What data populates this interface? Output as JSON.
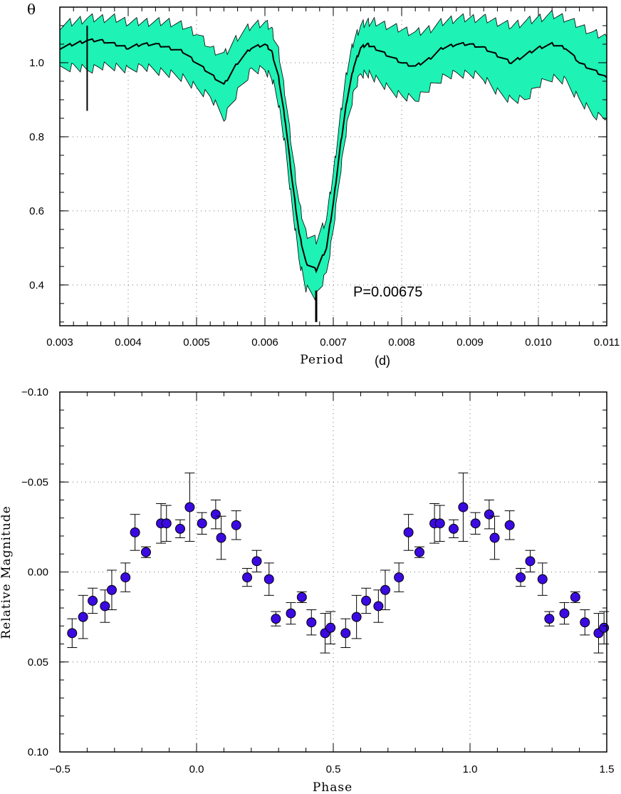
{
  "chart_data": [
    {
      "type": "line",
      "panel": "top",
      "xlabel": "Period",
      "xunit": "(d)",
      "ylabel": "θ",
      "xlim": [
        0.003,
        0.011
      ],
      "ylim": [
        0.29,
        1.15
      ],
      "x_ticks": [
        "0.003",
        "0.004",
        "0.005",
        "0.006",
        "0.007",
        "0.008",
        "0.009",
        "0.010",
        "0.011"
      ],
      "y_ticks": [
        "0.4",
        "0.6",
        "0.8",
        "1.0"
      ],
      "grid": true,
      "band_color": "#1ef2b4",
      "annotation": "P=0.00675",
      "marked_period": 0.00675,
      "series": [
        {
          "x": [
            0.003,
            0.0032,
            0.0034,
            0.0036,
            0.0038,
            0.004,
            0.0042,
            0.0044,
            0.0046,
            0.0048,
            0.005,
            0.0052,
            0.0054,
            0.0056,
            0.0058,
            0.006,
            0.0061,
            0.0062,
            0.0063,
            0.0064,
            0.0065,
            0.0066,
            0.00675,
            0.0069,
            0.007,
            0.0071,
            0.0072,
            0.0073,
            0.0074,
            0.0075,
            0.0076,
            0.0078,
            0.008,
            0.0082,
            0.0084,
            0.0086,
            0.0088,
            0.009,
            0.0092,
            0.0094,
            0.0096,
            0.0098,
            0.01,
            0.0102,
            0.0104,
            0.0106,
            0.0108,
            0.011
          ],
          "y": [
            1.04,
            1.05,
            1.06,
            1.06,
            1.05,
            1.04,
            1.05,
            1.05,
            1.04,
            1.03,
            1.0,
            0.97,
            0.94,
            1.0,
            1.04,
            1.05,
            1.03,
            0.96,
            0.84,
            0.68,
            0.54,
            0.46,
            0.44,
            0.5,
            0.62,
            0.77,
            0.9,
            0.99,
            1.04,
            1.05,
            1.04,
            1.02,
            1.0,
            0.99,
            1.01,
            1.04,
            1.05,
            1.05,
            1.04,
            1.02,
            1.0,
            1.02,
            1.04,
            1.05,
            1.04,
            1.0,
            0.98,
            0.96
          ],
          "lower": [
            0.98,
            0.99,
            0.98,
            0.99,
            0.99,
            0.98,
            0.99,
            0.98,
            0.97,
            0.96,
            0.93,
            0.91,
            0.85,
            0.92,
            0.98,
            0.98,
            0.96,
            0.89,
            0.77,
            0.61,
            0.47,
            0.39,
            0.37,
            0.43,
            0.55,
            0.7,
            0.83,
            0.92,
            0.97,
            0.97,
            0.96,
            0.93,
            0.91,
            0.9,
            0.93,
            0.96,
            0.97,
            0.97,
            0.96,
            0.92,
            0.9,
            0.9,
            0.94,
            0.96,
            0.95,
            0.9,
            0.86,
            0.85
          ],
          "upper": [
            1.1,
            1.11,
            1.12,
            1.12,
            1.12,
            1.11,
            1.11,
            1.11,
            1.11,
            1.1,
            1.08,
            1.04,
            1.02,
            1.07,
            1.1,
            1.11,
            1.09,
            1.03,
            0.91,
            0.76,
            0.62,
            0.54,
            0.52,
            0.58,
            0.7,
            0.85,
            0.98,
            1.06,
            1.1,
            1.11,
            1.11,
            1.1,
            1.09,
            1.08,
            1.09,
            1.11,
            1.12,
            1.12,
            1.12,
            1.11,
            1.1,
            1.11,
            1.12,
            1.13,
            1.12,
            1.1,
            1.08,
            1.07
          ]
        }
      ]
    },
    {
      "type": "scatter",
      "panel": "bottom",
      "xlabel": "Phase",
      "ylabel": "Relative Magnitude",
      "xlim": [
        -0.5,
        1.5
      ],
      "ylim": [
        0.1,
        -0.1
      ],
      "x_ticks": [
        "−0.5",
        "0.0",
        "0.5",
        "1.0",
        "1.5"
      ],
      "y_ticks": [
        "−0.10",
        "−0.05",
        "0.00",
        "0.05",
        "0.10"
      ],
      "grid": true,
      "marker_color": "#3b0ae0",
      "series": [
        {
          "x": [
            -0.455,
            -0.415,
            -0.38,
            -0.335,
            -0.31,
            -0.26,
            -0.225,
            -0.185,
            -0.13,
            -0.11,
            -0.06,
            -0.025,
            0.02,
            0.07,
            0.09,
            0.145,
            0.185,
            0.22,
            0.265,
            0.29,
            0.345,
            0.385,
            0.42,
            0.47,
            0.49,
            0.545,
            0.585,
            0.62,
            0.665,
            0.69,
            0.74,
            0.775,
            0.815,
            0.87,
            0.89,
            0.94,
            0.975,
            1.02,
            1.07,
            1.09,
            1.145,
            1.185,
            1.22,
            1.265,
            1.29,
            1.345,
            1.385,
            1.42,
            1.47,
            1.49
          ],
          "y": [
            0.034,
            0.025,
            0.016,
            0.019,
            0.01,
            0.003,
            -0.022,
            -0.011,
            -0.027,
            -0.027,
            -0.024,
            -0.036,
            -0.027,
            -0.032,
            -0.019,
            -0.026,
            0.003,
            -0.006,
            0.004,
            0.026,
            0.023,
            0.014,
            0.028,
            0.034,
            0.031,
            0.034,
            0.025,
            0.016,
            0.019,
            0.01,
            0.003,
            -0.022,
            -0.011,
            -0.027,
            -0.027,
            -0.024,
            -0.036,
            -0.027,
            -0.032,
            -0.019,
            -0.026,
            0.003,
            -0.006,
            0.004,
            0.026,
            0.023,
            0.014,
            0.028,
            0.034,
            0.031
          ],
          "err": [
            0.008,
            0.012,
            0.007,
            0.009,
            0.011,
            0.008,
            0.01,
            0.003,
            0.011,
            0.01,
            0.005,
            0.019,
            0.006,
            0.008,
            0.012,
            0.008,
            0.005,
            0.006,
            0.009,
            0.004,
            0.006,
            0.003,
            0.007,
            0.011,
            0.009,
            0.008,
            0.012,
            0.007,
            0.009,
            0.011,
            0.008,
            0.01,
            0.003,
            0.011,
            0.01,
            0.005,
            0.019,
            0.006,
            0.008,
            0.012,
            0.008,
            0.005,
            0.006,
            0.009,
            0.004,
            0.006,
            0.003,
            0.007,
            0.011,
            0.009
          ]
        }
      ]
    }
  ]
}
